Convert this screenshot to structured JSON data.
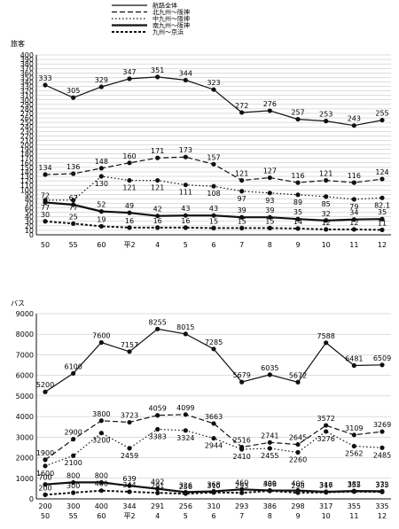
{
  "legend": [
    {
      "name": "航路全体",
      "dash": "solid"
    },
    {
      "name": "北九州～阪神",
      "dash": "long"
    },
    {
      "name": "中九州～阪神",
      "dash": "dot"
    },
    {
      "name": "南九州～阪神",
      "dash": "solid-bold"
    },
    {
      "name": "九州～京浜",
      "dash": "short"
    }
  ],
  "chart_data": [
    {
      "type": "line",
      "title": "旅客",
      "categories": [
        "50",
        "55",
        "60",
        "平2",
        "4",
        "5",
        "6",
        "7",
        "8",
        "9",
        "10",
        "11",
        "12"
      ],
      "ylim": [
        0,
        400
      ],
      "yticks": [
        0,
        10,
        20,
        30,
        40,
        50,
        60,
        70,
        80,
        90,
        100,
        110,
        120,
        130,
        140,
        150,
        160,
        170,
        180,
        190,
        200,
        210,
        220,
        230,
        240,
        250,
        260,
        270,
        280,
        290,
        300,
        310,
        320,
        330,
        340,
        350,
        360,
        370,
        380,
        390,
        400
      ],
      "series": [
        {
          "name": "航路全体",
          "values": [
            333,
            305,
            329,
            347,
            351,
            344,
            323,
            272,
            276,
            257,
            253,
            243,
            255
          ]
        },
        {
          "name": "北九州～阪神",
          "values": [
            134,
            136,
            148,
            160,
            171,
            173,
            157,
            121,
            127,
            116,
            121,
            116,
            124
          ]
        },
        {
          "name": "中九州～阪神",
          "values": [
            77,
            77,
            130,
            121,
            121,
            111,
            108,
            97,
            93,
            89,
            85,
            79,
            82.1
          ]
        },
        {
          "name": "南九州～阪神",
          "values": [
            72,
            67,
            52,
            49,
            42,
            43,
            43,
            39,
            39,
            35,
            32,
            34,
            35
          ]
        },
        {
          "name": "九州～京浜",
          "values": [
            30,
            25,
            19,
            16,
            16,
            16,
            15,
            15,
            15,
            14,
            12,
            12,
            11
          ]
        }
      ]
    },
    {
      "type": "line",
      "title": "バス",
      "categories": [
        "50",
        "55",
        "60",
        "平2",
        "4",
        "5",
        "6",
        "7",
        "8",
        "9",
        "10",
        "11",
        "12"
      ],
      "sub_categories": [
        "200",
        "300",
        "400",
        "344",
        "291",
        "256",
        "310",
        "293",
        "386",
        "298",
        "317",
        "355",
        "335"
      ],
      "ylim": [
        0,
        9000
      ],
      "yticks": [
        0,
        1000,
        2000,
        3000,
        4000,
        5000,
        6000,
        7000,
        8000,
        9000
      ],
      "series": [
        {
          "name": "航路全体",
          "values": [
            5200,
            6100,
            7600,
            7157,
            8255,
            8015,
            7285,
            5679,
            6035,
            5672,
            7588,
            6481,
            6509
          ]
        },
        {
          "name": "北九州～阪神",
          "values": [
            1900,
            2900,
            3800,
            3723,
            4059,
            4099,
            3663,
            2516,
            2741,
            2645,
            3572,
            3109,
            3269
          ]
        },
        {
          "name": "中九州～阪神",
          "values": [
            1600,
            2100,
            3200,
            2459,
            3383,
            3324,
            2944,
            2410,
            2455,
            2260,
            3276,
            2562,
            2485
          ]
        },
        {
          "name": "南九州～阪神",
          "values": [
            700,
            800,
            800,
            639,
            492,
            326,
            368,
            460,
            409,
            406,
            346,
            382,
            372
          ]
        },
        {
          "name": "九州～京浜",
          "values": [
            200,
            300,
            400,
            344,
            291,
            256,
            310,
            293,
            386,
            298,
            317,
            355,
            335
          ]
        }
      ]
    }
  ]
}
